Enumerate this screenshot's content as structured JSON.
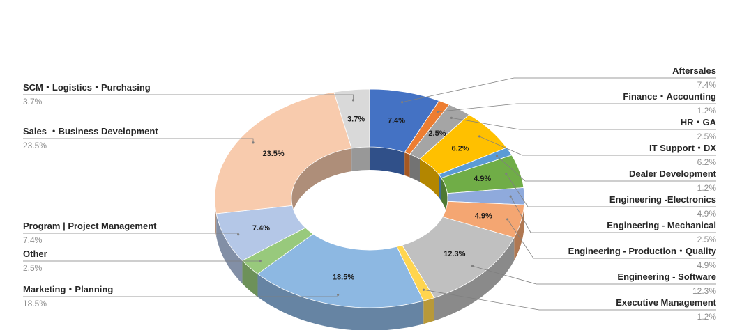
{
  "chart_data": {
    "type": "pie",
    "variant": "3d-donut",
    "title": "",
    "legend": "callout-labels",
    "slices": [
      {
        "name": "Aftersales",
        "value": 7.4,
        "label": "7.4%",
        "color": "#4472c4"
      },
      {
        "name": "Finance・Accounting",
        "value": 1.2,
        "label": "1.2%",
        "color": "#ed7d31"
      },
      {
        "name": "HR・GA",
        "value": 2.5,
        "label": "2.5%",
        "color": "#a5a5a5"
      },
      {
        "name": "IT Support・DX",
        "value": 6.2,
        "label": "6.2%",
        "color": "#ffc000"
      },
      {
        "name": "Dealer Development",
        "value": 1.2,
        "label": "1.2%",
        "color": "#5b9bd5"
      },
      {
        "name": "Engineering -Electronics",
        "value": 4.9,
        "label": "4.9%",
        "color": "#70ad47"
      },
      {
        "name": "Engineering - Mechanical",
        "value": 2.5,
        "label": "2.5%",
        "color": "#8faadc"
      },
      {
        "name": "Engineering - Production・Quality",
        "value": 4.9,
        "label": "4.9%",
        "color": "#f4a672"
      },
      {
        "name": "Engineering - Software",
        "value": 12.3,
        "label": "12.3%",
        "color": "#c0c0c0"
      },
      {
        "name": "Executive Management",
        "value": 1.2,
        "label": "1.2%",
        "color": "#ffd54f"
      },
      {
        "name": "Marketing・Planning",
        "value": 18.5,
        "label": "18.5%",
        "color": "#8db8e2"
      },
      {
        "name": "Other",
        "value": 2.5,
        "label": "2.5%",
        "color": "#98c97c"
      },
      {
        "name": "Program | Project Management",
        "value": 7.4,
        "label": "7.4%",
        "color": "#b4c7e7"
      },
      {
        "name": "Sales ・Business Development",
        "value": 23.5,
        "label": "23.5%",
        "color": "#f8cbad"
      },
      {
        "name": "SCM・Logistics・Purchasing",
        "value": 3.7,
        "label": "3.7%",
        "color": "#d9d9d9"
      }
    ],
    "inner_labels_shown": [
      "7.4%",
      "6.2%",
      "4.9%",
      "2.5%",
      "4.9%",
      "12.3%",
      "18.5%",
      "7.4%",
      "23.5%",
      "3.7%"
    ]
  }
}
